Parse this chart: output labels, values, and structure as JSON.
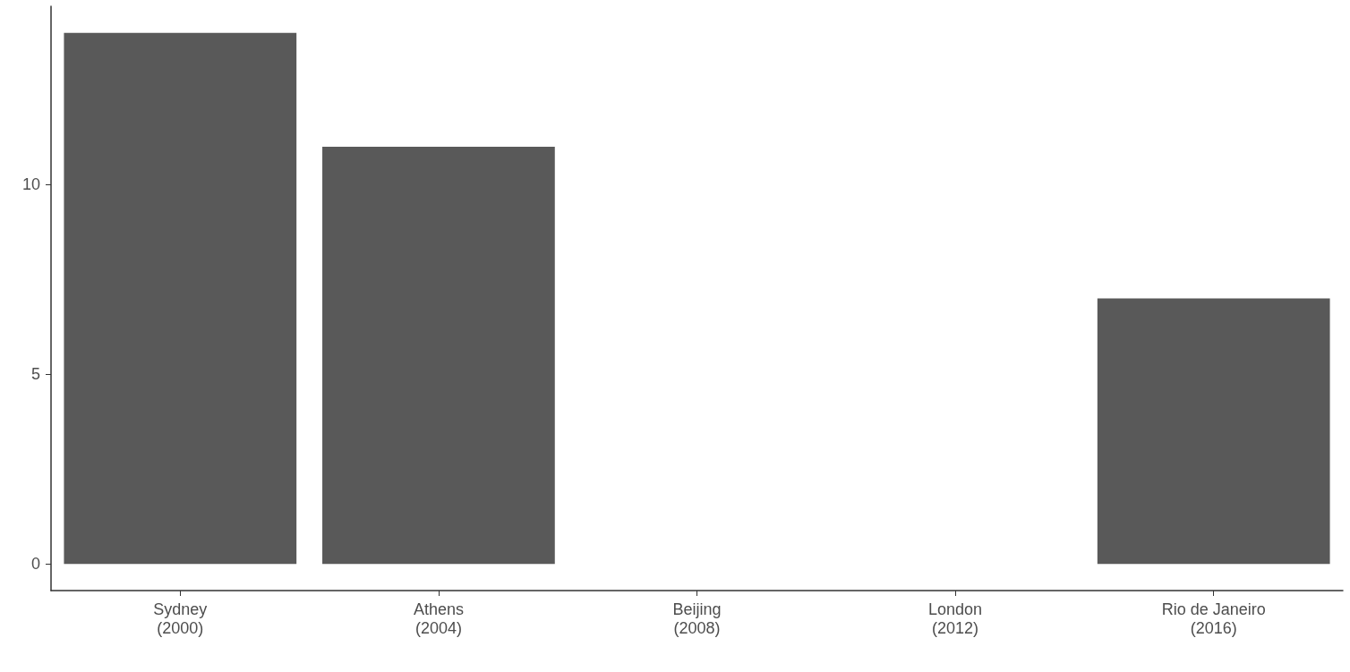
{
  "chart_data": {
    "type": "bar",
    "categories": [
      "Sydney\n(2000)",
      "Athens\n(2004)",
      "Beijing\n(2008)",
      "London\n(2012)",
      "Rio de Janeiro\n(2016)"
    ],
    "values": [
      14,
      11,
      0,
      0,
      7
    ],
    "color": "#595959",
    "ylim": [
      -0.7,
      14.7
    ],
    "yticks": [
      0,
      5,
      10
    ]
  }
}
